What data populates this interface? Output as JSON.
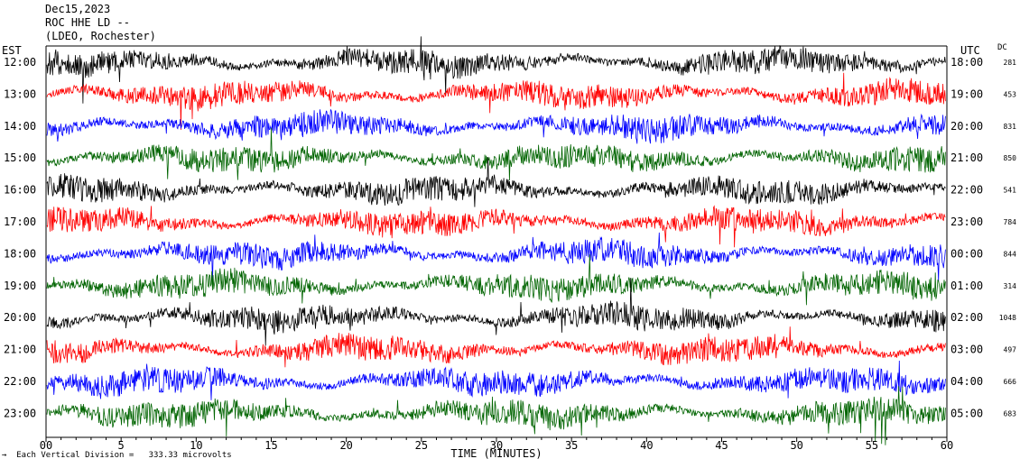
{
  "header": {
    "date": "Dec15,2023",
    "station": "ROC HHE LD --",
    "location": "(LDEO, Rochester)"
  },
  "left_axis_label": "EST",
  "right_axis_label": "UTC",
  "dc_label": "DC",
  "footer": {
    "mark": "→",
    "scale_text": "Each Vertical Division =   333.33 microvolts"
  },
  "colors": {
    "black": "#000000",
    "red": "#ff0000",
    "blue": "#0000ff",
    "green": "#006400"
  },
  "chart_data": {
    "type": "line",
    "title": "",
    "xlabel": "TIME (MINUTES)",
    "xlim": [
      0,
      60
    ],
    "x_ticks": [
      0,
      5,
      10,
      15,
      20,
      25,
      30,
      35,
      40,
      45,
      50,
      55,
      60
    ],
    "x_tick_labels": [
      "00",
      "5",
      "10",
      "15",
      "20",
      "25",
      "30",
      "35",
      "40",
      "45",
      "50",
      "55",
      "60"
    ],
    "rows": [
      {
        "est": "12:00",
        "utc": "18:00",
        "dc": "281",
        "color": "black"
      },
      {
        "est": "13:00",
        "utc": "19:00",
        "dc": "453",
        "color": "red"
      },
      {
        "est": "14:00",
        "utc": "20:00",
        "dc": "831",
        "color": "blue"
      },
      {
        "est": "15:00",
        "utc": "21:00",
        "dc": "850",
        "color": "green"
      },
      {
        "est": "16:00",
        "utc": "22:00",
        "dc": "541",
        "color": "black"
      },
      {
        "est": "17:00",
        "utc": "23:00",
        "dc": "784",
        "color": "red"
      },
      {
        "est": "18:00",
        "utc": "00:00",
        "dc": "844",
        "color": "blue"
      },
      {
        "est": "19:00",
        "utc": "01:00",
        "dc": "314",
        "color": "green"
      },
      {
        "est": "20:00",
        "utc": "02:00",
        "dc": "1048",
        "color": "black"
      },
      {
        "est": "21:00",
        "utc": "03:00",
        "dc": "497",
        "color": "red"
      },
      {
        "est": "22:00",
        "utc": "04:00",
        "dc": "666",
        "color": "blue"
      },
      {
        "est": "23:00",
        "utc": "05:00",
        "dc": "683",
        "color": "green"
      }
    ]
  }
}
